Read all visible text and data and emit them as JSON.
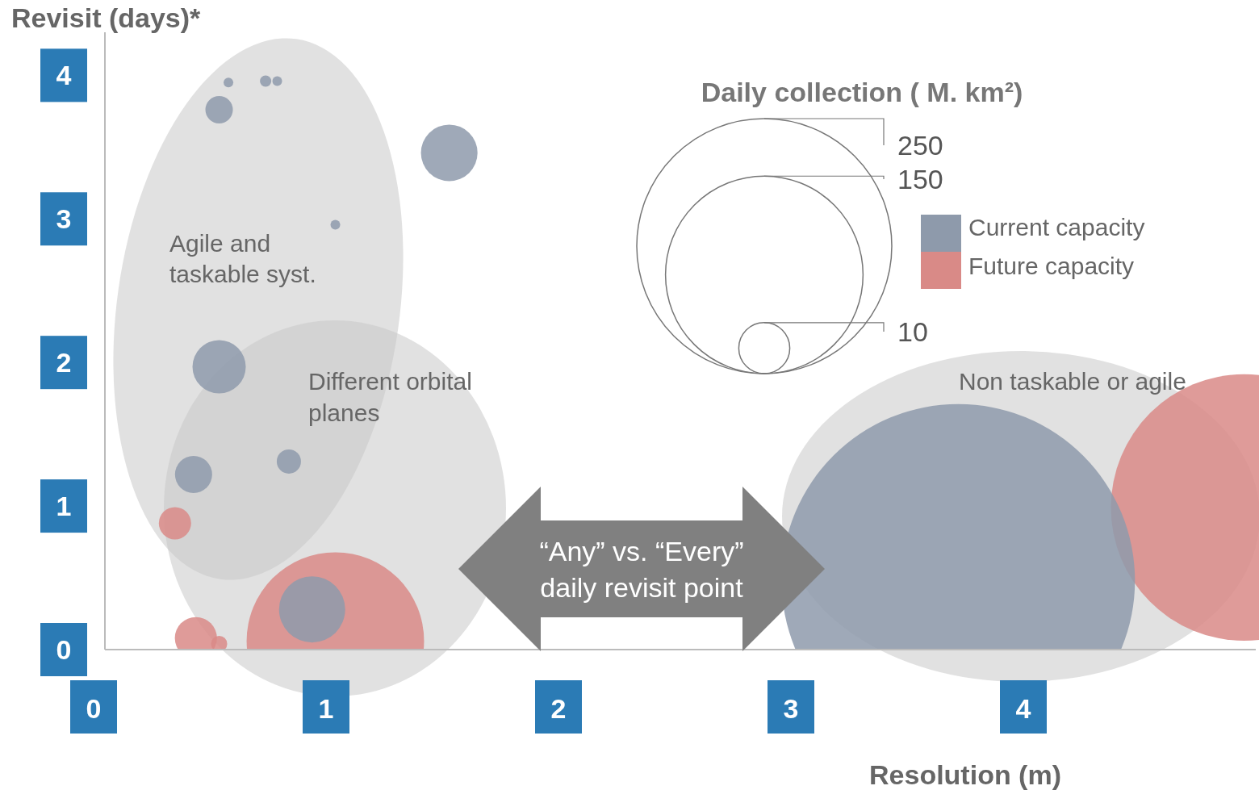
{
  "chart_data": {
    "type": "bubble",
    "xlabel": "Resolution (m)",
    "ylabel": "Revisit (days)*",
    "legend_title": "Daily collection ( M. km²)",
    "xlim": [
      0,
      5
    ],
    "ylim": [
      0,
      4.3
    ],
    "xticks": [
      0,
      1,
      2,
      3,
      4
    ],
    "yticks": [
      0,
      1,
      2,
      3,
      4
    ],
    "legend": "top right",
    "size_legend": [
      250,
      150,
      10
    ],
    "annotations": [
      "Agile and\ntaskable syst.",
      "Different orbital\nplanes",
      "Non taskable or  agile",
      "“Any” vs. “Every”\ndaily revisit point"
    ],
    "series": [
      {
        "name": "Future capacity",
        "color": "#d98a87",
        "x": [
          0.35,
          0.44,
          0.54,
          1.04,
          4.95
        ],
        "values": [
          0.88,
          0.08,
          0.04,
          0.06,
          0.99
        ],
        "sizes": [
          4,
          6.8,
          1,
          121,
          273
        ]
      },
      {
        "name": "Current capacity",
        "color": "#8e9aab",
        "x": [
          0.58,
          0.74,
          0.79,
          0.54,
          1.53,
          1.04,
          0.54,
          0.43,
          0.84,
          0.94,
          3.72
        ],
        "values": [
          3.95,
          3.96,
          3.96,
          3.76,
          3.46,
          2.96,
          1.97,
          1.22,
          1.31,
          0.28,
          0.48
        ],
        "sizes": [
          0.36,
          0.49,
          0.36,
          2.9,
          12.3,
          0.36,
          10.9,
          5.3,
          2.25,
          16.8,
          480
        ]
      }
    ]
  }
}
